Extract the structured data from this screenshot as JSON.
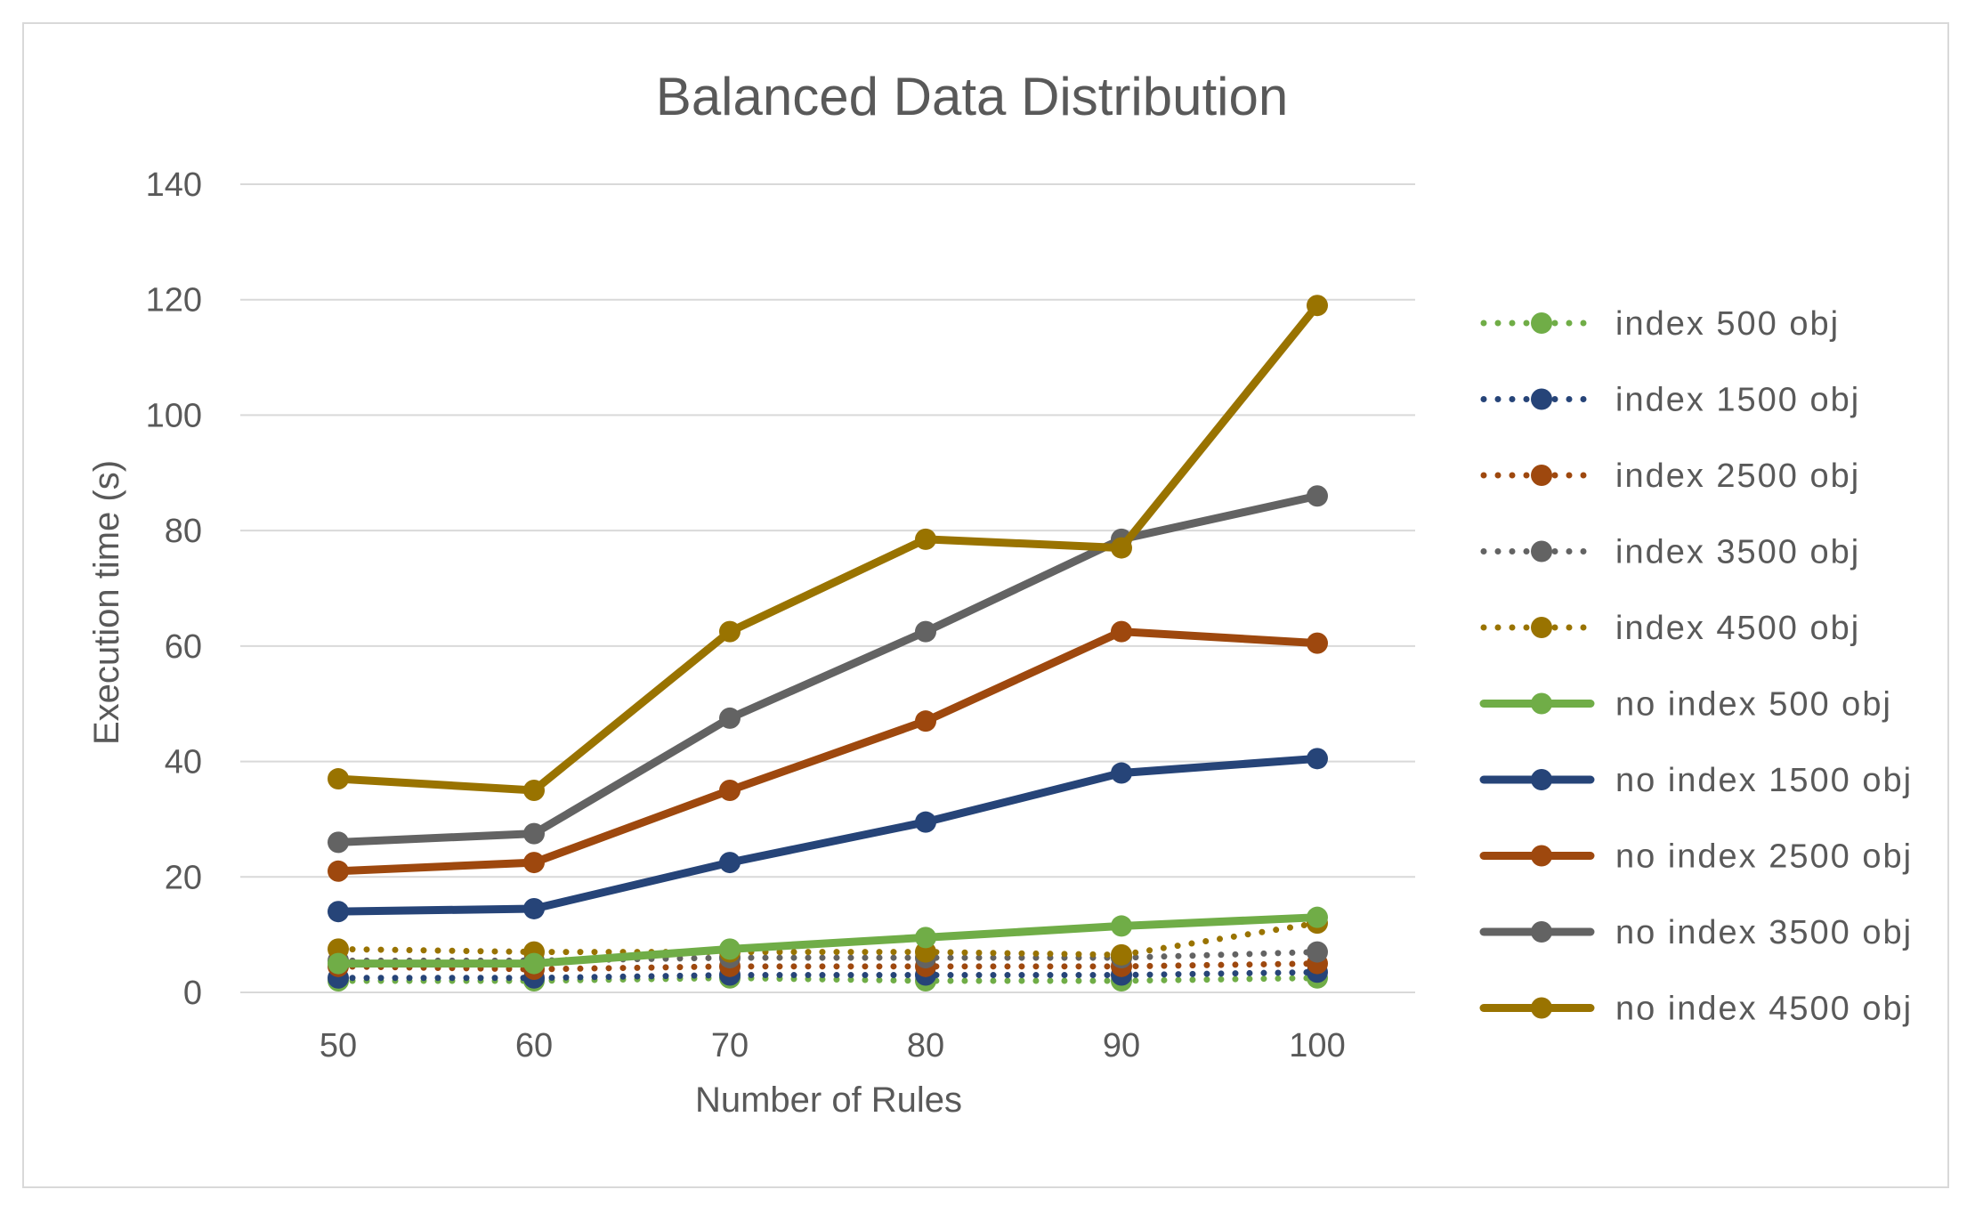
{
  "chart_data": {
    "type": "line",
    "title": "Balanced Data Distribution",
    "xlabel": "Number of Rules",
    "ylabel": "Execution time (s)",
    "x": [
      50,
      60,
      70,
      80,
      90,
      100
    ],
    "ylim": [
      0,
      140
    ],
    "yticks": [
      0,
      20,
      40,
      60,
      80,
      100,
      120,
      140
    ],
    "grid": true,
    "legend": "right",
    "series": [
      {
        "name": "index 500 obj",
        "style": "dotted",
        "color": "#70ad47",
        "values": [
          2.0,
          2.0,
          2.5,
          2.0,
          2.0,
          2.5
        ]
      },
      {
        "name": "index 1500 obj",
        "style": "dotted",
        "color": "#264478",
        "values": [
          2.5,
          2.5,
          3.0,
          3.0,
          3.0,
          3.5
        ]
      },
      {
        "name": "index 2500 obj",
        "style": "dotted",
        "color": "#9e480e",
        "values": [
          4.5,
          4.0,
          4.5,
          4.5,
          4.5,
          5.0
        ]
      },
      {
        "name": "index 3500 obj",
        "style": "dotted",
        "color": "#636363",
        "values": [
          5.5,
          5.5,
          6.0,
          6.0,
          6.0,
          7.0
        ]
      },
      {
        "name": "index 4500 obj",
        "style": "dotted",
        "color": "#997300",
        "values": [
          7.5,
          7.0,
          7.0,
          7.0,
          6.5,
          12.0
        ]
      },
      {
        "name": "no index 500 obj",
        "style": "solid",
        "color": "#70ad47",
        "values": [
          5.0,
          5.0,
          7.5,
          9.5,
          11.5,
          13.0
        ]
      },
      {
        "name": "no index 1500 obj",
        "style": "solid",
        "color": "#264478",
        "values": [
          14.0,
          14.5,
          22.5,
          29.5,
          38.0,
          40.5
        ]
      },
      {
        "name": "no index 2500 obj",
        "style": "solid",
        "color": "#9e480e",
        "values": [
          21.0,
          22.5,
          35.0,
          47.0,
          62.5,
          60.5
        ]
      },
      {
        "name": "no index 3500 obj",
        "style": "solid",
        "color": "#636363",
        "values": [
          26.0,
          27.5,
          47.5,
          62.5,
          78.5,
          86.0
        ]
      },
      {
        "name": "no index 4500 obj",
        "style": "solid",
        "color": "#997300",
        "values": [
          37.0,
          35.0,
          62.5,
          78.5,
          77.0,
          119.0
        ]
      }
    ]
  }
}
